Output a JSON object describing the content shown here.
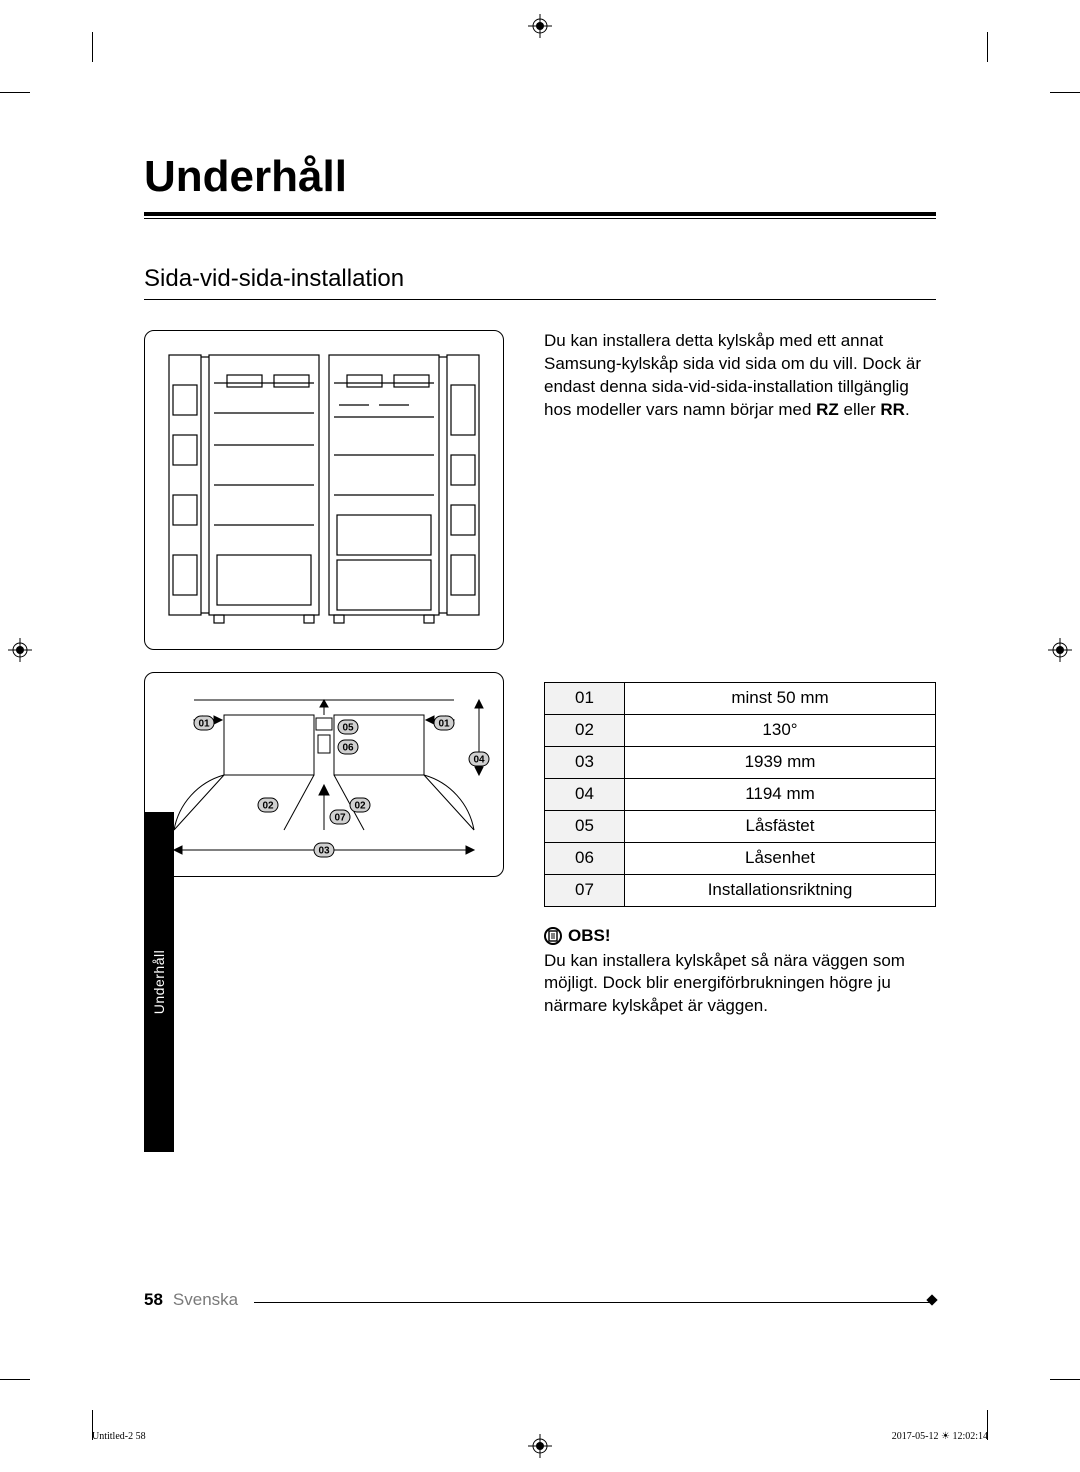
{
  "page": {
    "title": "Underhåll",
    "subtitle": "Sida-vid-sida-installation",
    "intro": "Du kan installera detta kylskåp med ett annat Samsung-kylskåp sida vid sida om du vill. Dock är endast denna sida-vid-sida-installation tillgänglig hos modeller vars namn börjar med ",
    "intro_bold1": "RZ",
    "intro_mid": " eller ",
    "intro_bold2": "RR",
    "intro_end": "."
  },
  "spec_table": {
    "rows": [
      {
        "id": "01",
        "val": "minst 50 mm"
      },
      {
        "id": "02",
        "val": "130°"
      },
      {
        "id": "03",
        "val": "1939 mm"
      },
      {
        "id": "04",
        "val": "1194 mm"
      },
      {
        "id": "05",
        "val": "Låsfästet"
      },
      {
        "id": "06",
        "val": "Låsenhet"
      },
      {
        "id": "07",
        "val": "Installationsriktning"
      }
    ]
  },
  "note": {
    "label": "OBS!",
    "text": "Du kan installera kylskåpet så nära väggen som möjligt. Dock blir energiförbrukningen högre ju närmare kylskåpet är väggen."
  },
  "tab": {
    "label": "Underhåll"
  },
  "footer": {
    "pagenum": "58",
    "lang": "Svenska"
  },
  "print": {
    "left": "Untitled-2   58",
    "right_date": "2017-05-12   ",
    "right_time": "12:02:14"
  },
  "callouts": {
    "c01": "01",
    "c02": "02",
    "c03": "03",
    "c04": "04",
    "c05": "05",
    "c06": "06",
    "c07": "07"
  },
  "colors": {
    "text": "#000000",
    "bg": "#ffffff",
    "grey_cell": "#f2f2f2",
    "grey_text": "#7a7a7a",
    "callout_fill": "#d0d0d0"
  },
  "diagram": {
    "fridge_stroke": "#000000",
    "fridge_stroke_w": 1.2,
    "dim_stroke": "#000000"
  }
}
